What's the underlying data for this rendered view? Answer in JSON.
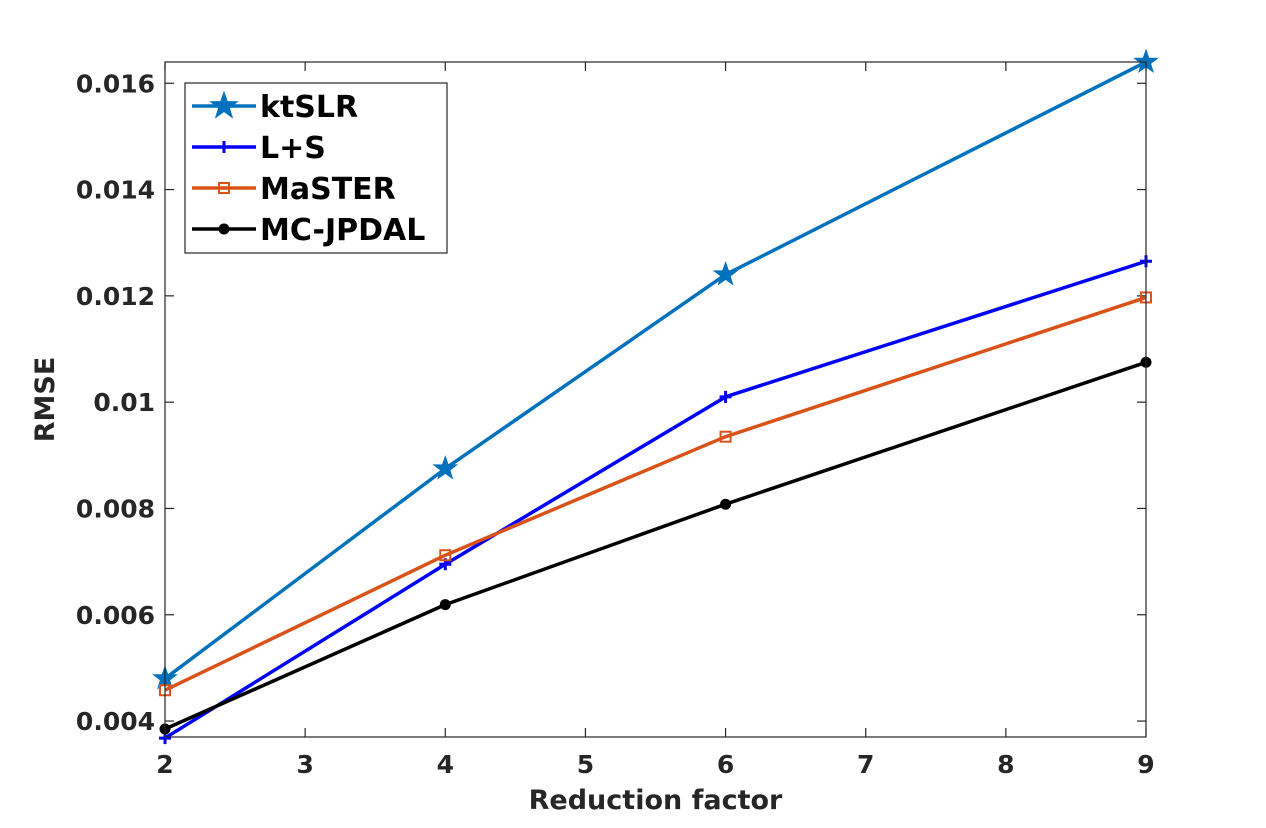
{
  "chart_data": {
    "type": "line",
    "title": "",
    "xlabel": "Reduction factor",
    "ylabel": "RMSE",
    "xlim": [
      2,
      9
    ],
    "ylim": [
      0.0037,
      0.0164
    ],
    "x_ticks": [
      2,
      3,
      4,
      5,
      6,
      7,
      8,
      9
    ],
    "x_tick_labels": [
      "2",
      "3",
      "4",
      "5",
      "6",
      "7",
      "8",
      "9"
    ],
    "y_ticks": [
      0.004,
      0.006,
      0.008,
      0.01,
      0.012,
      0.014,
      0.016
    ],
    "y_tick_labels": [
      "0.004",
      "0.006",
      "0.008",
      "0.01",
      "0.012",
      "0.014",
      "0.016"
    ],
    "grid": false,
    "legend_position": "top-left",
    "x": [
      2,
      4,
      6,
      9
    ],
    "series": [
      {
        "name": "ktSLR",
        "values": [
          0.0048,
          0.00875,
          0.0124,
          0.0164
        ],
        "color": "#0072BD",
        "marker": "star"
      },
      {
        "name": "L+S",
        "values": [
          0.00368,
          0.00695,
          0.0101,
          0.01265
        ],
        "color": "#0000FF",
        "marker": "plus"
      },
      {
        "name": "MaSTER",
        "values": [
          0.00458,
          0.00712,
          0.00935,
          0.01197
        ],
        "color": "#D95319",
        "marker": "square"
      },
      {
        "name": "MC-JPDAL",
        "values": [
          0.00385,
          0.00619,
          0.00808,
          0.01075
        ],
        "color": "#000000",
        "marker": "circle"
      }
    ]
  }
}
